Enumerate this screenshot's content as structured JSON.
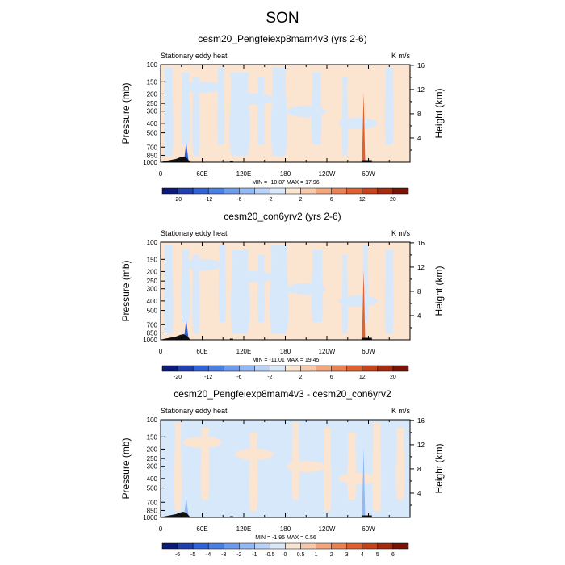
{
  "figure": {
    "title": "SON"
  },
  "colors": {
    "land_mask": "#111111",
    "frame": "#000000"
  },
  "chart_data": [
    {
      "type": "heatmap",
      "title": "cesm20_Pengfeiexp8mam4v3 (yrs 2-6)",
      "left_label": "Stationary eddy heat",
      "right_label": "K m/s",
      "ylabel": "Pressure (mb)",
      "y2label": "Height (km)",
      "x_ticks": [
        "0",
        "60E",
        "120E",
        "180",
        "120W",
        "60W"
      ],
      "x_tick_lon": [
        0,
        60,
        120,
        180,
        240,
        300
      ],
      "y_ticks": [
        "100",
        "150",
        "200",
        "250",
        "300",
        "400",
        "500",
        "700",
        "850",
        "1000"
      ],
      "y_tick_p": [
        100,
        150,
        200,
        250,
        300,
        400,
        500,
        700,
        850,
        1000
      ],
      "y2_ticks": [
        "4",
        "8",
        "12",
        "16"
      ],
      "y2_tick_km": [
        4,
        8,
        12,
        16
      ],
      "xlim": [
        0,
        360
      ],
      "ylim": [
        1000,
        100
      ],
      "log_pressure": true,
      "stats": "MIN = -10.87  MAX = 17.96",
      "colorbar": {
        "labels": [
          "-20",
          "-12",
          "-6",
          "-2",
          "2",
          "6",
          "12",
          "20"
        ],
        "label_positions": [
          1,
          3,
          5,
          7,
          9,
          11,
          13,
          15
        ],
        "colors": [
          "#0c1a7c",
          "#1f3fb2",
          "#3363d8",
          "#4a7fe6",
          "#6c9bf0",
          "#93b8f6",
          "#b8d2fa",
          "#d8e8fb",
          "#fbe4d0",
          "#f8c9a8",
          "#f3a57c",
          "#ec8253",
          "#e1602f",
          "#c8431a",
          "#a72b0e",
          "#7a1206"
        ]
      },
      "background_color": "#fbe4d0",
      "negative_color": "#d8e8fb",
      "blue_bands_lon": [
        [
          5,
          18
        ],
        [
          30,
          42
        ],
        [
          46,
          56
        ],
        [
          82,
          92
        ],
        [
          100,
          128
        ],
        [
          140,
          150
        ],
        [
          160,
          182
        ],
        [
          218,
          232
        ],
        [
          262,
          270
        ],
        [
          324,
          336
        ]
      ],
      "spike": {
        "lon": 293,
        "color": "#e1602f"
      },
      "secondary_spike": {
        "lon": 37,
        "color": "#3363d8"
      }
    },
    {
      "type": "heatmap",
      "title": "cesm20_con6yrv2 (yrs 2-6)",
      "left_label": "Stationary eddy heat",
      "right_label": "K m/s",
      "ylabel": "Pressure (mb)",
      "y2label": "Height (km)",
      "x_ticks": [
        "0",
        "60E",
        "120E",
        "180",
        "120W",
        "60W"
      ],
      "x_tick_lon": [
        0,
        60,
        120,
        180,
        240,
        300
      ],
      "y_ticks": [
        "100",
        "150",
        "200",
        "250",
        "300",
        "400",
        "500",
        "700",
        "850",
        "1000"
      ],
      "y_tick_p": [
        100,
        150,
        200,
        250,
        300,
        400,
        500,
        700,
        850,
        1000
      ],
      "y2_ticks": [
        "4",
        "8",
        "12",
        "16"
      ],
      "y2_tick_km": [
        4,
        8,
        12,
        16
      ],
      "xlim": [
        0,
        360
      ],
      "ylim": [
        1000,
        100
      ],
      "log_pressure": true,
      "stats": "MIN = -11.01  MAX =  19.45",
      "colorbar": {
        "labels": [
          "-20",
          "-12",
          "-6",
          "-2",
          "2",
          "6",
          "12",
          "20"
        ],
        "label_positions": [
          1,
          3,
          5,
          7,
          9,
          11,
          13,
          15
        ],
        "colors": [
          "#0c1a7c",
          "#1f3fb2",
          "#3363d8",
          "#4a7fe6",
          "#6c9bf0",
          "#93b8f6",
          "#b8d2fa",
          "#d8e8fb",
          "#fbe4d0",
          "#f8c9a8",
          "#f3a57c",
          "#ec8253",
          "#e1602f",
          "#c8431a",
          "#a72b0e",
          "#7a1206"
        ]
      },
      "background_color": "#fbe4d0",
      "negative_color": "#d8e8fb",
      "blue_bands_lon": [
        [
          5,
          18
        ],
        [
          30,
          42
        ],
        [
          46,
          56
        ],
        [
          84,
          94
        ],
        [
          102,
          128
        ],
        [
          140,
          150
        ],
        [
          158,
          184
        ],
        [
          218,
          234
        ],
        [
          262,
          270
        ],
        [
          292,
          300
        ],
        [
          324,
          336
        ]
      ],
      "spike": {
        "lon": 293,
        "color": "#e1602f"
      },
      "secondary_spike": {
        "lon": 37,
        "color": "#3363d8"
      }
    },
    {
      "type": "heatmap",
      "title": "cesm20_Pengfeiexp8mam4v3 - cesm20_con6yrv2",
      "left_label": "Stationary eddy heat",
      "right_label": "K m/s",
      "ylabel": "Pressure (mb)",
      "y2label": "Height (km)",
      "x_ticks": [
        "0",
        "60E",
        "120E",
        "180",
        "120W",
        "60W"
      ],
      "x_tick_lon": [
        0,
        60,
        120,
        180,
        240,
        300
      ],
      "y_ticks": [
        "100",
        "150",
        "200",
        "250",
        "300",
        "400",
        "500",
        "700",
        "850",
        "1000"
      ],
      "y_tick_p": [
        100,
        150,
        200,
        250,
        300,
        400,
        500,
        700,
        850,
        1000
      ],
      "y2_ticks": [
        "4",
        "8",
        "12",
        "16"
      ],
      "y2_tick_km": [
        4,
        8,
        12,
        16
      ],
      "xlim": [
        0,
        360
      ],
      "ylim": [
        1000,
        100
      ],
      "log_pressure": true,
      "stats": "MIN =  -1.95  MAX =   0.56",
      "colorbar": {
        "labels": [
          "-6",
          "-5",
          "-4",
          "-3",
          "-2",
          "-1",
          "-0.5",
          "0",
          "0.5",
          "1",
          "2",
          "3",
          "4",
          "5",
          "6"
        ],
        "label_positions": [
          1,
          2,
          3,
          4,
          5,
          6,
          7,
          8,
          9,
          10,
          11,
          12,
          13,
          14,
          15
        ],
        "colors": [
          "#0c1a7c",
          "#1f3fb2",
          "#3363d8",
          "#4a7fe6",
          "#6c9bf0",
          "#93b8f6",
          "#b8d2fa",
          "#d8e8fb",
          "#fbe4d0",
          "#f8c9a8",
          "#f3a57c",
          "#ec8253",
          "#e1602f",
          "#c8431a",
          "#a72b0e",
          "#7a1206"
        ]
      },
      "background_color": "#d8e8fb",
      "negative_color": "#fbe4d0",
      "blue_bands_lon": [
        [
          20,
          30
        ],
        [
          58,
          70
        ],
        [
          128,
          140
        ],
        [
          190,
          200
        ],
        [
          236,
          246
        ],
        [
          270,
          282
        ],
        [
          306,
          318
        ],
        [
          340,
          352
        ]
      ],
      "spike": {
        "lon": 293,
        "color": "#93b8f6"
      },
      "secondary_spike": {
        "lon": 37,
        "color": "#93b8f6"
      }
    }
  ]
}
